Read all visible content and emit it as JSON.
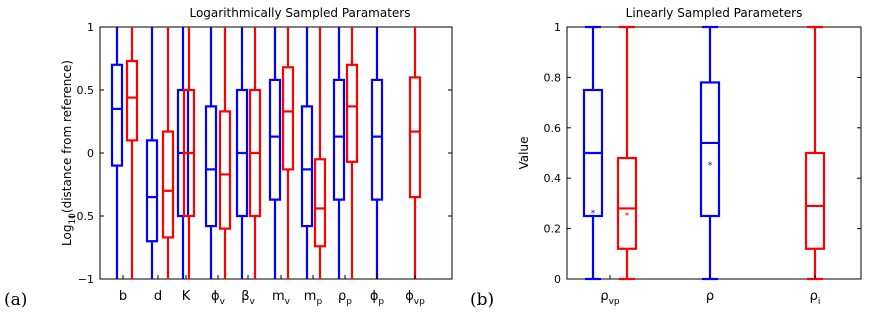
{
  "colors": {
    "series_blue": "#0000ff",
    "series_red": "#ff0000"
  },
  "panel_labels": [
    "(a)",
    "(b)"
  ],
  "chart_data": [
    {
      "type": "boxplot",
      "title": "Logarithmically Sampled Paramaters",
      "ylabel": {
        "main": "Log",
        "sub": "10",
        "rest": "(distance from reference)"
      },
      "ylim": [
        -1,
        1
      ],
      "yticks": [
        -1,
        -0.5,
        0,
        0.5,
        1
      ],
      "ytick_labels": [
        "−1",
        "−0.5",
        "0",
        "0.5",
        "1"
      ],
      "grid": false,
      "categories": [
        {
          "main": "b",
          "sub": ""
        },
        {
          "main": "d",
          "sub": ""
        },
        {
          "main": "K",
          "sub": ""
        },
        {
          "main": "ϕ",
          "sub": "v"
        },
        {
          "main": "β",
          "sub": "v"
        },
        {
          "main": "m",
          "sub": "v"
        },
        {
          "main": "m",
          "sub": "p"
        },
        {
          "main": "ρ",
          "sub": "p"
        },
        {
          "main": "ϕ",
          "sub": "p"
        },
        {
          "main": "ϕ",
          "sub": "vp"
        }
      ],
      "series": [
        {
          "color": "blue",
          "boxes": [
            {
              "min": -1,
              "q1": -0.1,
              "median": 0.35,
              "q3": 0.7,
              "max": 1
            },
            {
              "min": -1,
              "q1": -0.7,
              "median": -0.35,
              "q3": 0.1,
              "max": 1
            },
            {
              "min": -1,
              "q1": -0.5,
              "median": 0.0,
              "q3": 0.5,
              "max": 1
            },
            {
              "min": -1,
              "q1": -0.58,
              "median": -0.13,
              "q3": 0.37,
              "max": 1
            },
            {
              "min": -1,
              "q1": -0.5,
              "median": 0.0,
              "q3": 0.5,
              "max": 1
            },
            {
              "min": -1,
              "q1": -0.37,
              "median": 0.13,
              "q3": 0.58,
              "max": 1
            },
            {
              "min": -1,
              "q1": -0.58,
              "median": -0.13,
              "q3": 0.37,
              "max": 1
            },
            {
              "min": -1,
              "q1": -0.37,
              "median": 0.13,
              "q3": 0.58,
              "max": 1
            },
            {
              "min": -1,
              "q1": -0.37,
              "median": 0.13,
              "q3": 0.58,
              "max": 1
            },
            null
          ]
        },
        {
          "color": "red",
          "boxes": [
            {
              "min": -1,
              "q1": 0.1,
              "median": 0.44,
              "q3": 0.73,
              "max": 1
            },
            {
              "min": -1,
              "q1": -0.67,
              "median": -0.3,
              "q3": 0.17,
              "max": 1
            },
            {
              "min": -1,
              "q1": -0.5,
              "median": 0.0,
              "q3": 0.5,
              "max": 1
            },
            {
              "min": -1,
              "q1": -0.6,
              "median": -0.17,
              "q3": 0.33,
              "max": 1
            },
            {
              "min": -1,
              "q1": -0.5,
              "median": 0.0,
              "q3": 0.5,
              "max": 1
            },
            {
              "min": -1,
              "q1": -0.13,
              "median": 0.33,
              "q3": 0.68,
              "max": 1
            },
            {
              "min": -1,
              "q1": -0.74,
              "median": -0.44,
              "q3": -0.05,
              "max": 1
            },
            {
              "min": -1,
              "q1": -0.07,
              "median": 0.37,
              "q3": 0.7,
              "max": 1
            },
            null,
            {
              "min": -1,
              "q1": -0.35,
              "median": 0.17,
              "q3": 0.6,
              "max": 1
            }
          ]
        }
      ]
    },
    {
      "type": "boxplot",
      "title": "Linearly Sampled Parameters",
      "ylabel": {
        "main": "Value",
        "sub": "",
        "rest": ""
      },
      "ylim": [
        0,
        1
      ],
      "yticks": [
        0,
        0.2,
        0.4,
        0.6,
        0.8,
        1
      ],
      "ytick_labels": [
        "0",
        "0.2",
        "0.4",
        "0.6",
        "0.8",
        "1"
      ],
      "grid": false,
      "categories": [
        {
          "main": "ρ",
          "sub": "vp"
        },
        {
          "main": "ρ",
          "sub": ""
        },
        {
          "main": "ρ",
          "sub": "i"
        }
      ],
      "series": [
        {
          "color": "blue",
          "boxes": [
            {
              "min": 0,
              "q1": 0.25,
              "median": 0.5,
              "q3": 0.75,
              "max": 1,
              "mean": 0.27
            },
            {
              "min": 0,
              "q1": 0.25,
              "median": 0.54,
              "q3": 0.78,
              "max": 1,
              "mean": 0.46
            },
            null
          ]
        },
        {
          "color": "red",
          "boxes": [
            {
              "min": 0,
              "q1": 0.12,
              "median": 0.28,
              "q3": 0.48,
              "max": 1,
              "mean": 0.26
            },
            null,
            {
              "min": 0,
              "q1": 0.12,
              "median": 0.29,
              "q3": 0.5,
              "max": 1
            }
          ]
        }
      ]
    }
  ]
}
